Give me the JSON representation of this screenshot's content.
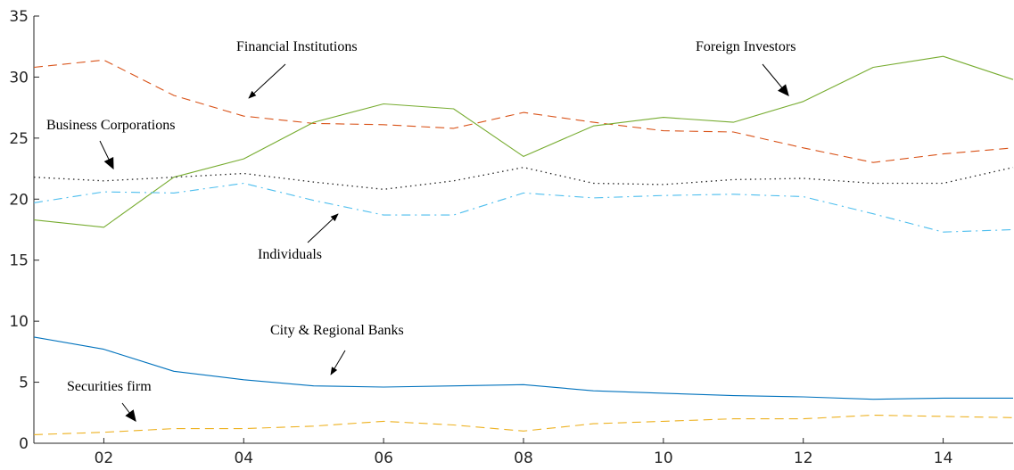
{
  "chart_data": {
    "type": "line",
    "title": "",
    "xlabel": "",
    "ylabel": "",
    "xlim": [
      1,
      15
    ],
    "ylim": [
      0,
      35
    ],
    "x": [
      1,
      2,
      3,
      4,
      5,
      6,
      7,
      8,
      9,
      10,
      11,
      12,
      13,
      14,
      15
    ],
    "x_tick_values": [
      2,
      4,
      6,
      8,
      10,
      12,
      14
    ],
    "x_tick_labels": [
      "02",
      "04",
      "06",
      "08",
      "10",
      "12",
      "14"
    ],
    "y_tick_values": [
      0,
      5,
      10,
      15,
      20,
      25,
      30,
      35
    ],
    "y_tick_labels": [
      "0",
      "5",
      "10",
      "15",
      "20",
      "25",
      "30",
      "35"
    ],
    "grid": false,
    "legend": "none",
    "series": [
      {
        "name": "Financial Institutions",
        "color": "#D95319",
        "dash": "dashed",
        "values": [
          30.8,
          31.4,
          28.5,
          26.8,
          26.2,
          26.1,
          25.8,
          27.1,
          26.3,
          25.6,
          25.5,
          24.2,
          23.0,
          23.7,
          24.2
        ]
      },
      {
        "name": "Foreign Investors",
        "color": "#77AC30",
        "dash": "solid",
        "values": [
          18.3,
          17.7,
          21.8,
          23.3,
          26.3,
          27.8,
          27.4,
          23.5,
          26.0,
          26.7,
          26.3,
          28.0,
          30.8,
          31.7,
          29.8
        ]
      },
      {
        "name": "Business Corporations",
        "color": "#222222",
        "dash": "dotted",
        "values": [
          21.8,
          21.5,
          21.8,
          22.1,
          21.4,
          20.8,
          21.5,
          22.6,
          21.3,
          21.2,
          21.6,
          21.7,
          21.3,
          21.3,
          22.6
        ]
      },
      {
        "name": "Individuals",
        "color": "#4DBEEE",
        "dash": "dashdot",
        "values": [
          19.7,
          20.6,
          20.5,
          21.3,
          19.9,
          18.7,
          18.7,
          20.5,
          20.1,
          20.3,
          20.4,
          20.2,
          18.8,
          17.3,
          17.5
        ]
      },
      {
        "name": "City & Regional Banks",
        "color": "#0072BD",
        "dash": "solid",
        "values": [
          8.7,
          7.7,
          5.9,
          5.2,
          4.7,
          4.6,
          4.7,
          4.8,
          4.3,
          4.1,
          3.9,
          3.8,
          3.6,
          3.7,
          3.7
        ]
      },
      {
        "name": "Securities firm",
        "color": "#EDB120",
        "dash": "dashed",
        "values": [
          0.7,
          0.9,
          1.2,
          1.2,
          1.4,
          1.8,
          1.5,
          1.0,
          1.6,
          1.8,
          2.0,
          2.0,
          2.3,
          2.2,
          2.1
        ]
      }
    ],
    "annotations": [
      {
        "text": "Financial Institutions",
        "series": "Financial Institutions"
      },
      {
        "text": "Foreign Investors",
        "series": "Foreign Investors"
      },
      {
        "text": "Business Corporations",
        "series": "Business Corporations"
      },
      {
        "text": "Individuals",
        "series": "Individuals"
      },
      {
        "text": "City & Regional Banks",
        "series": "City & Regional Banks"
      },
      {
        "text": "Securities firm",
        "series": "Securities firm"
      }
    ]
  }
}
